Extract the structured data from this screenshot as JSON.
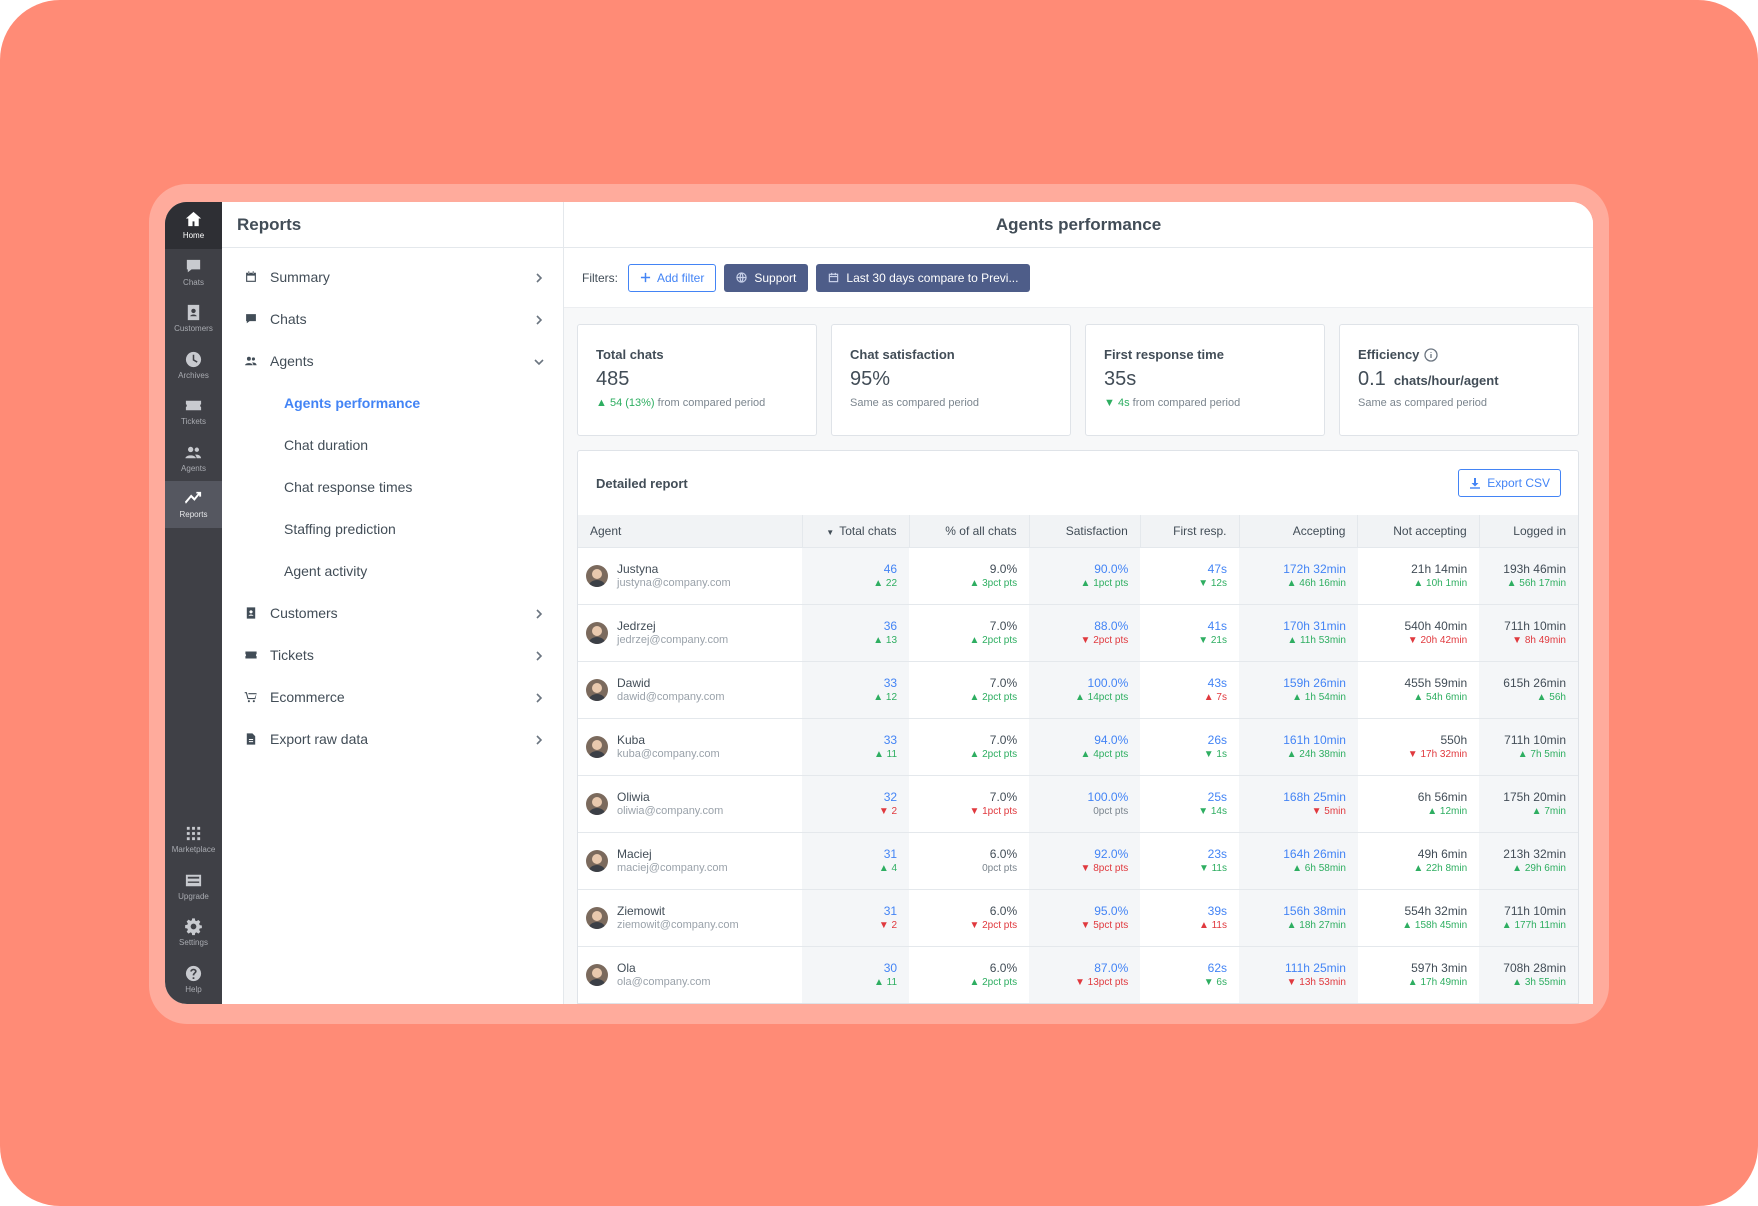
{
  "rail": {
    "top": [
      {
        "name": "rail-home",
        "icon": "home-icon",
        "label": "Home",
        "state": "home"
      },
      {
        "name": "rail-chats",
        "icon": "chat-icon",
        "label": "Chats"
      },
      {
        "name": "rail-customers",
        "icon": "contact-card-icon",
        "label": "Customers"
      },
      {
        "name": "rail-archives",
        "icon": "clock-icon",
        "label": "Archives"
      },
      {
        "name": "rail-tickets",
        "icon": "ticket-icon",
        "label": "Tickets"
      },
      {
        "name": "rail-agents",
        "icon": "people-icon",
        "label": "Agents"
      },
      {
        "name": "rail-reports",
        "icon": "chart-icon",
        "label": "Reports",
        "state": "active"
      }
    ],
    "bottom": [
      {
        "name": "rail-marketplace",
        "icon": "grid-icon",
        "label": "Marketplace"
      },
      {
        "name": "rail-upgrade",
        "icon": "card-icon",
        "label": "Upgrade"
      },
      {
        "name": "rail-settings",
        "icon": "gear-icon",
        "label": "Settings"
      },
      {
        "name": "rail-help",
        "icon": "help-icon",
        "label": "Help"
      }
    ]
  },
  "nav": {
    "title": "Reports",
    "items": [
      {
        "label": "Summary",
        "icon": "calendar-icon",
        "chevron": "right"
      },
      {
        "label": "Chats",
        "icon": "chat-icon",
        "chevron": "right"
      },
      {
        "label": "Agents",
        "icon": "people-icon",
        "chevron": "down",
        "children": [
          {
            "label": "Agents performance",
            "active": true
          },
          {
            "label": "Chat duration"
          },
          {
            "label": "Chat response times"
          },
          {
            "label": "Staffing prediction"
          },
          {
            "label": "Agent activity"
          }
        ]
      },
      {
        "label": "Customers",
        "icon": "contact-card-icon",
        "chevron": "right"
      },
      {
        "label": "Tickets",
        "icon": "ticket-icon",
        "chevron": "right"
      },
      {
        "label": "Ecommerce",
        "icon": "cart-icon",
        "chevron": "right"
      },
      {
        "label": "Export raw data",
        "icon": "file-icon",
        "chevron": "right"
      }
    ]
  },
  "main": {
    "title": "Agents performance",
    "filters": {
      "label": "Filters:",
      "add_filter": "Add filter",
      "chips": [
        {
          "icon": "globe-icon",
          "label": "Support"
        },
        {
          "icon": "calendar-icon",
          "label": "Last 30 days compare to Previ..."
        }
      ]
    },
    "cards": [
      {
        "title": "Total chats",
        "value": "485",
        "unit": "",
        "delta_arrow": "▲",
        "delta_highlight": "54 (13%)",
        "delta_text": " from compared period",
        "dir": "up"
      },
      {
        "title": "Chat satisfaction",
        "value": "95%",
        "unit": "",
        "delta_arrow": "",
        "delta_highlight": "",
        "delta_text": "Same as compared period",
        "dir": "neutral"
      },
      {
        "title": "First response time",
        "value": "35s",
        "unit": "",
        "delta_arrow": "▼",
        "delta_highlight": "4s",
        "delta_text": " from compared period",
        "dir": "down"
      },
      {
        "title": "Efficiency",
        "value": "0.1",
        "unit": "chats/hour/agent",
        "delta_arrow": "",
        "delta_highlight": "",
        "delta_text": "Same as compared period",
        "dir": "neutral",
        "info": true
      }
    ],
    "report": {
      "title": "Detailed report",
      "export_label": "Export CSV",
      "columns": [
        "Agent",
        "Total chats",
        "% of all chats",
        "Satisfaction",
        "First resp.",
        "Accepting",
        "Not accepting",
        "Logged in"
      ],
      "rows": [
        {
          "name": "Justyna",
          "email": "justyna@company.com",
          "cells": [
            {
              "v": "46",
              "link": true,
              "d": "▲ 22",
              "dir": "up"
            },
            {
              "v": "9.0%",
              "d": "▲ 3pct pts",
              "dir": "up"
            },
            {
              "v": "90.0%",
              "link": true,
              "d": "▲ 1pct pts",
              "dir": "up"
            },
            {
              "v": "47s",
              "link": true,
              "d": "▼ 12s",
              "dir": "up"
            },
            {
              "v": "172h 32min",
              "link": true,
              "d": "▲ 46h 16min",
              "dir": "up"
            },
            {
              "v": "21h 14min",
              "d": "▲ 10h 1min",
              "dir": "up"
            },
            {
              "v": "193h 46min",
              "d": "▲ 56h 17min",
              "dir": "up"
            }
          ]
        },
        {
          "name": "Jedrzej",
          "email": "jedrzej@company.com",
          "cells": [
            {
              "v": "36",
              "link": true,
              "d": "▲ 13",
              "dir": "up"
            },
            {
              "v": "7.0%",
              "d": "▲ 2pct pts",
              "dir": "up"
            },
            {
              "v": "88.0%",
              "link": true,
              "d": "▼ 2pct pts",
              "dir": "dn"
            },
            {
              "v": "41s",
              "link": true,
              "d": "▼ 21s",
              "dir": "up"
            },
            {
              "v": "170h 31min",
              "link": true,
              "d": "▲ 11h 53min",
              "dir": "up"
            },
            {
              "v": "540h 40min",
              "d": "▼ 20h 42min",
              "dir": "dn"
            },
            {
              "v": "711h 10min",
              "d": "▼ 8h 49min",
              "dir": "dn"
            }
          ]
        },
        {
          "name": "Dawid",
          "email": "dawid@company.com",
          "cells": [
            {
              "v": "33",
              "link": true,
              "d": "▲ 12",
              "dir": "up"
            },
            {
              "v": "7.0%",
              "d": "▲ 2pct pts",
              "dir": "up"
            },
            {
              "v": "100.0%",
              "link": true,
              "d": "▲ 14pct pts",
              "dir": "up"
            },
            {
              "v": "43s",
              "link": true,
              "d": "▲ 7s",
              "dir": "dn"
            },
            {
              "v": "159h 26min",
              "link": true,
              "d": "▲ 1h 54min",
              "dir": "up"
            },
            {
              "v": "455h 59min",
              "d": "▲ 54h 6min",
              "dir": "up"
            },
            {
              "v": "615h 26min",
              "d": "▲ 56h",
              "dir": "up"
            }
          ]
        },
        {
          "name": "Kuba",
          "email": "kuba@company.com",
          "cells": [
            {
              "v": "33",
              "link": true,
              "d": "▲ 11",
              "dir": "up"
            },
            {
              "v": "7.0%",
              "d": "▲ 2pct pts",
              "dir": "up"
            },
            {
              "v": "94.0%",
              "link": true,
              "d": "▲ 4pct pts",
              "dir": "up"
            },
            {
              "v": "26s",
              "link": true,
              "d": "▼ 1s",
              "dir": "up"
            },
            {
              "v": "161h 10min",
              "link": true,
              "d": "▲ 24h 38min",
              "dir": "up"
            },
            {
              "v": "550h",
              "d": "▼ 17h 32min",
              "dir": "dn"
            },
            {
              "v": "711h 10min",
              "d": "▲ 7h 5min",
              "dir": "up"
            }
          ]
        },
        {
          "name": "Oliwia",
          "email": "oliwia@company.com",
          "cells": [
            {
              "v": "32",
              "link": true,
              "d": "▼ 2",
              "dir": "dn"
            },
            {
              "v": "7.0%",
              "d": "▼ 1pct pts",
              "dir": "dn"
            },
            {
              "v": "100.0%",
              "link": true,
              "d": "0pct pts",
              "dir": "neu"
            },
            {
              "v": "25s",
              "link": true,
              "d": "▼ 14s",
              "dir": "up"
            },
            {
              "v": "168h 25min",
              "link": true,
              "d": "▼ 5min",
              "dir": "dn"
            },
            {
              "v": "6h 56min",
              "d": "▲ 12min",
              "dir": "up"
            },
            {
              "v": "175h 20min",
              "d": "▲ 7min",
              "dir": "up"
            }
          ]
        },
        {
          "name": "Maciej",
          "email": "maciej@company.com",
          "cells": [
            {
              "v": "31",
              "link": true,
              "d": "▲ 4",
              "dir": "up"
            },
            {
              "v": "6.0%",
              "d": "0pct pts",
              "dir": "neu"
            },
            {
              "v": "92.0%",
              "link": true,
              "d": "▼ 8pct pts",
              "dir": "dn"
            },
            {
              "v": "23s",
              "link": true,
              "d": "▼ 11s",
              "dir": "up"
            },
            {
              "v": "164h 26min",
              "link": true,
              "d": "▲ 6h 58min",
              "dir": "up"
            },
            {
              "v": "49h 6min",
              "d": "▲ 22h 8min",
              "dir": "up"
            },
            {
              "v": "213h 32min",
              "d": "▲ 29h 6min",
              "dir": "up"
            }
          ]
        },
        {
          "name": "Ziemowit",
          "email": "ziemowit@company.com",
          "cells": [
            {
              "v": "31",
              "link": true,
              "d": "▼ 2",
              "dir": "dn"
            },
            {
              "v": "6.0%",
              "d": "▼ 2pct pts",
              "dir": "dn"
            },
            {
              "v": "95.0%",
              "link": true,
              "d": "▼ 5pct pts",
              "dir": "dn"
            },
            {
              "v": "39s",
              "link": true,
              "d": "▲ 11s",
              "dir": "dn"
            },
            {
              "v": "156h 38min",
              "link": true,
              "d": "▲ 18h 27min",
              "dir": "up"
            },
            {
              "v": "554h 32min",
              "d": "▲ 158h 45min",
              "dir": "up"
            },
            {
              "v": "711h 10min",
              "d": "▲ 177h 11min",
              "dir": "up"
            }
          ]
        },
        {
          "name": "Ola",
          "email": "ola@company.com",
          "cells": [
            {
              "v": "30",
              "link": true,
              "d": "▲ 11",
              "dir": "up"
            },
            {
              "v": "6.0%",
              "d": "▲ 2pct pts",
              "dir": "up"
            },
            {
              "v": "87.0%",
              "link": true,
              "d": "▼ 13pct pts",
              "dir": "dn"
            },
            {
              "v": "62s",
              "link": true,
              "d": "▼ 6s",
              "dir": "up"
            },
            {
              "v": "111h 25min",
              "link": true,
              "d": "▼ 13h 53min",
              "dir": "dn"
            },
            {
              "v": "597h 3min",
              "d": "▲ 17h 49min",
              "dir": "up"
            },
            {
              "v": "708h 28min",
              "d": "▲ 3h 55min",
              "dir": "up"
            }
          ]
        }
      ]
    }
  }
}
